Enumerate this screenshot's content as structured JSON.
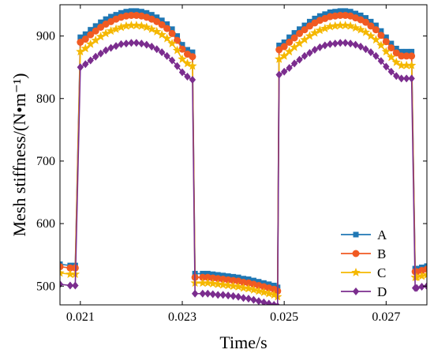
{
  "chart_data": {
    "type": "line",
    "xlabel": "Time/s",
    "ylabel": "Mesh stiffness/(N•m⁻¹)",
    "xlim": [
      0.0206,
      0.0278
    ],
    "ylim": [
      470,
      950
    ],
    "xticks": [
      0.021,
      0.023,
      0.025,
      0.027
    ],
    "xtick_labels": [
      "0.021",
      "0.023",
      "0.025",
      "0.027"
    ],
    "yticks": [
      500,
      600,
      700,
      800,
      900
    ],
    "ytick_labels": [
      "500",
      "600",
      "700",
      "800",
      "900"
    ],
    "grid": false,
    "legend_position": "bottom-right",
    "series": [
      {
        "name": "A",
        "color": "#1f77b4",
        "marker": "square",
        "x": [
          0.0206,
          0.0208,
          0.0209,
          0.021,
          0.0211,
          0.0212,
          0.0213,
          0.0214,
          0.0215,
          0.0216,
          0.0217,
          0.0218,
          0.0219,
          0.022,
          0.0221,
          0.0222,
          0.0223,
          0.0224,
          0.0225,
          0.0226,
          0.0227,
          0.0228,
          0.0229,
          0.023,
          0.0231,
          0.0232,
          0.02325,
          0.0234,
          0.0235,
          0.0236,
          0.0237,
          0.0238,
          0.0239,
          0.024,
          0.0241,
          0.0242,
          0.0243,
          0.0244,
          0.0245,
          0.0246,
          0.0247,
          0.0248,
          0.02487,
          0.0249,
          0.025,
          0.0251,
          0.0252,
          0.0253,
          0.0254,
          0.0255,
          0.0256,
          0.0257,
          0.0258,
          0.0259,
          0.026,
          0.0261,
          0.0262,
          0.0263,
          0.0264,
          0.0265,
          0.0266,
          0.0267,
          0.0268,
          0.0269,
          0.027,
          0.0271,
          0.0272,
          0.0273,
          0.0274,
          0.0275,
          0.02757,
          0.0276,
          0.0277,
          0.0278
        ],
        "y": [
          535,
          533,
          533,
          898,
          903,
          910,
          916,
          922,
          927,
          931,
          934,
          937,
          939,
          940,
          940,
          939,
          937,
          934,
          930,
          925,
          919,
          911,
          900,
          886,
          878,
          874,
          520,
          520,
          520,
          519,
          518,
          517,
          516,
          515,
          514,
          512,
          511,
          509,
          507,
          505,
          503,
          501,
          498,
          885,
          890,
          898,
          905,
          911,
          917,
          923,
          928,
          932,
          935,
          938,
          939,
          940,
          940,
          939,
          936,
          933,
          929,
          923,
          917,
          908,
          898,
          888,
          880,
          875,
          875,
          875,
          528,
          528,
          530,
          532
        ]
      },
      {
        "name": "B",
        "color": "#f15a22",
        "marker": "circle",
        "x": [
          0.0206,
          0.0208,
          0.0209,
          0.021,
          0.0211,
          0.0212,
          0.0213,
          0.0214,
          0.0215,
          0.0216,
          0.0217,
          0.0218,
          0.0219,
          0.022,
          0.0221,
          0.0222,
          0.0223,
          0.0224,
          0.0225,
          0.0226,
          0.0227,
          0.0228,
          0.0229,
          0.023,
          0.0231,
          0.0232,
          0.02325,
          0.0234,
          0.0235,
          0.0236,
          0.0237,
          0.0238,
          0.0239,
          0.024,
          0.0241,
          0.0242,
          0.0243,
          0.0244,
          0.0245,
          0.0246,
          0.0247,
          0.0248,
          0.02487,
          0.0249,
          0.025,
          0.0251,
          0.0252,
          0.0253,
          0.0254,
          0.0255,
          0.0256,
          0.0257,
          0.0258,
          0.0259,
          0.026,
          0.0261,
          0.0262,
          0.0263,
          0.0264,
          0.0265,
          0.0266,
          0.0267,
          0.0268,
          0.0269,
          0.027,
          0.0271,
          0.0272,
          0.0273,
          0.0274,
          0.0275,
          0.02757,
          0.0276,
          0.0277,
          0.0278
        ],
        "y": [
          531,
          529,
          529,
          890,
          895,
          902,
          908,
          914,
          919,
          923,
          927,
          930,
          932,
          933,
          933,
          932,
          930,
          927,
          923,
          918,
          912,
          904,
          893,
          879,
          871,
          867,
          514,
          514,
          514,
          513,
          512,
          511,
          510,
          509,
          508,
          506,
          505,
          503,
          501,
          499,
          497,
          495,
          492,
          878,
          883,
          890,
          897,
          904,
          910,
          916,
          921,
          925,
          928,
          931,
          932,
          933,
          933,
          932,
          929,
          926,
          922,
          916,
          910,
          901,
          891,
          881,
          873,
          868,
          868,
          868,
          523,
          523,
          525,
          527
        ]
      },
      {
        "name": "C",
        "color": "#f5b800",
        "marker": "star",
        "x": [
          0.0206,
          0.0208,
          0.0209,
          0.021,
          0.0211,
          0.0212,
          0.0213,
          0.0214,
          0.0215,
          0.0216,
          0.0217,
          0.0218,
          0.0219,
          0.022,
          0.0221,
          0.0222,
          0.0223,
          0.0224,
          0.0225,
          0.0226,
          0.0227,
          0.0228,
          0.0229,
          0.023,
          0.0231,
          0.0232,
          0.02325,
          0.0234,
          0.0235,
          0.0236,
          0.0237,
          0.0238,
          0.0239,
          0.024,
          0.0241,
          0.0242,
          0.0243,
          0.0244,
          0.0245,
          0.0246,
          0.0247,
          0.0248,
          0.02487,
          0.0249,
          0.025,
          0.0251,
          0.0252,
          0.0253,
          0.0254,
          0.0255,
          0.0256,
          0.0257,
          0.0258,
          0.0259,
          0.026,
          0.0261,
          0.0262,
          0.0263,
          0.0264,
          0.0265,
          0.0266,
          0.0267,
          0.0268,
          0.0269,
          0.027,
          0.0271,
          0.0272,
          0.0273,
          0.0274,
          0.0275,
          0.02757,
          0.0276,
          0.0277,
          0.0278
        ],
        "y": [
          521,
          519,
          519,
          875,
          880,
          887,
          893,
          899,
          904,
          908,
          911,
          914,
          916,
          917,
          917,
          916,
          914,
          911,
          907,
          902,
          896,
          888,
          877,
          863,
          856,
          852,
          505,
          505,
          505,
          504,
          503,
          502,
          501,
          500,
          499,
          497,
          496,
          494,
          492,
          490,
          488,
          486,
          483,
          863,
          868,
          875,
          882,
          888,
          894,
          900,
          905,
          909,
          912,
          915,
          916,
          917,
          917,
          916,
          913,
          910,
          906,
          900,
          894,
          885,
          875,
          866,
          858,
          853,
          853,
          853,
          514,
          514,
          516,
          518
        ]
      },
      {
        "name": "D",
        "color": "#7b2d8e",
        "marker": "diamond",
        "x": [
          0.0206,
          0.0208,
          0.0209,
          0.021,
          0.0211,
          0.0212,
          0.0213,
          0.0214,
          0.0215,
          0.0216,
          0.0217,
          0.0218,
          0.0219,
          0.022,
          0.0221,
          0.0222,
          0.0223,
          0.0224,
          0.0225,
          0.0226,
          0.0227,
          0.0228,
          0.0229,
          0.023,
          0.0231,
          0.0232,
          0.02325,
          0.0234,
          0.0235,
          0.0236,
          0.0237,
          0.0238,
          0.0239,
          0.024,
          0.0241,
          0.0242,
          0.0243,
          0.0244,
          0.0245,
          0.0246,
          0.0247,
          0.0248,
          0.02487,
          0.0249,
          0.025,
          0.0251,
          0.0252,
          0.0253,
          0.0254,
          0.0255,
          0.0256,
          0.0257,
          0.0258,
          0.0259,
          0.026,
          0.0261,
          0.0262,
          0.0263,
          0.0264,
          0.0265,
          0.0266,
          0.0267,
          0.0268,
          0.0269,
          0.027,
          0.0271,
          0.0272,
          0.0273,
          0.0274,
          0.0275,
          0.02757,
          0.0276,
          0.0277,
          0.0278
        ],
        "y": [
          503,
          501,
          501,
          850,
          855,
          861,
          867,
          872,
          877,
          881,
          884,
          887,
          888,
          889,
          889,
          888,
          886,
          883,
          879,
          874,
          868,
          861,
          852,
          842,
          835,
          830,
          488,
          488,
          488,
          487,
          486,
          486,
          485,
          484,
          483,
          481,
          480,
          478,
          476,
          474,
          472,
          470,
          468,
          838,
          843,
          849,
          856,
          862,
          868,
          873,
          878,
          882,
          885,
          887,
          888,
          889,
          889,
          888,
          886,
          883,
          879,
          874,
          868,
          860,
          851,
          843,
          836,
          832,
          832,
          832,
          497,
          497,
          499,
          500
        ]
      }
    ]
  }
}
